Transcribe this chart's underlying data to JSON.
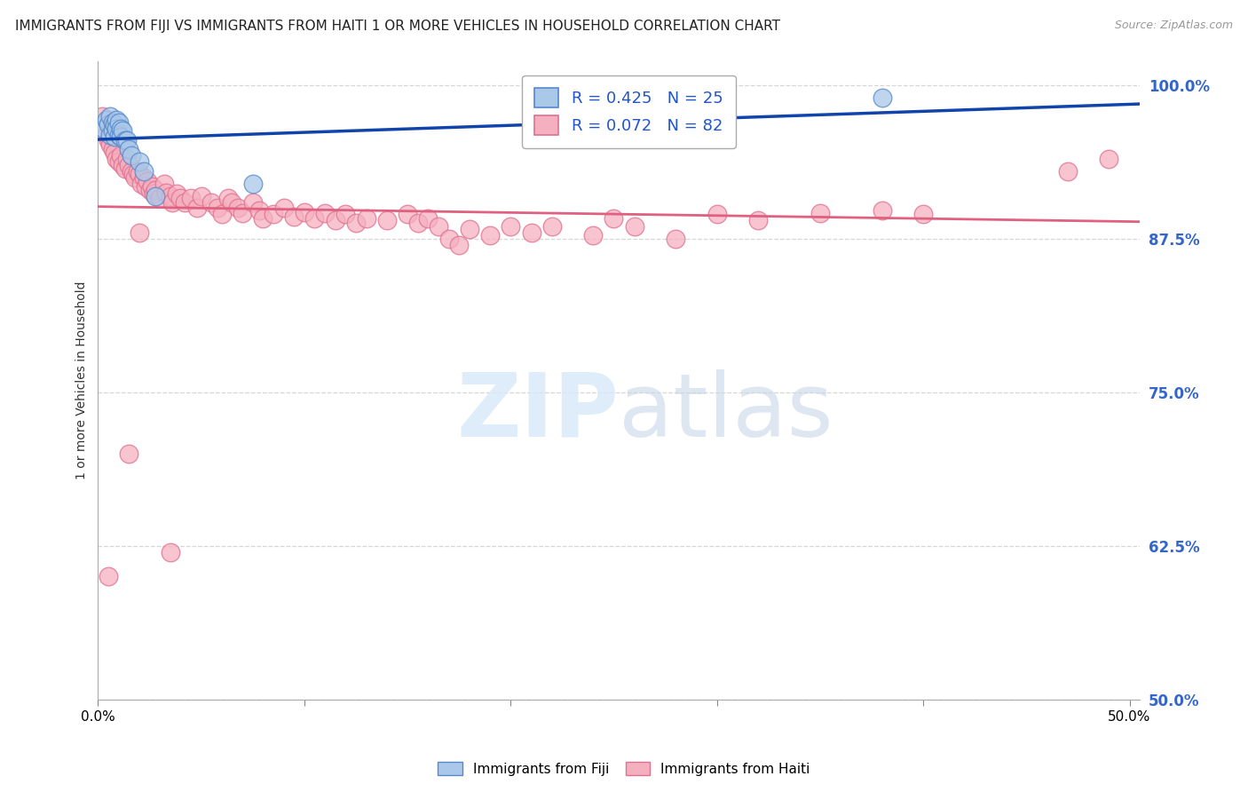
{
  "title": "IMMIGRANTS FROM FIJI VS IMMIGRANTS FROM HAITI 1 OR MORE VEHICLES IN HOUSEHOLD CORRELATION CHART",
  "source": "Source: ZipAtlas.com",
  "ylabel": "1 or more Vehicles in Household",
  "ylim": [
    0.5,
    1.02
  ],
  "xlim": [
    0.0,
    0.505
  ],
  "yticks": [
    0.5,
    0.625,
    0.75,
    0.875,
    1.0
  ],
  "ytick_labels": [
    "50.0%",
    "62.5%",
    "75.0%",
    "87.5%",
    "100.0%"
  ],
  "xticks": [
    0.0,
    0.1,
    0.2,
    0.3,
    0.4,
    0.5
  ],
  "xtick_labels": [
    "0.0%",
    "",
    "",
    "",
    "",
    "50.0%"
  ],
  "fiji_R": 0.425,
  "fiji_N": 25,
  "haiti_R": 0.072,
  "haiti_N": 82,
  "fiji_color": "#aac8e8",
  "haiti_color": "#f5b0c0",
  "fiji_edge": "#5588cc",
  "haiti_edge": "#e07090",
  "trendline_fiji_color": "#1144aa",
  "trendline_haiti_color": "#e06080",
  "fiji_points": [
    [
      0.003,
      0.965
    ],
    [
      0.004,
      0.972
    ],
    [
      0.005,
      0.968
    ],
    [
      0.006,
      0.975
    ],
    [
      0.006,
      0.96
    ],
    [
      0.007,
      0.97
    ],
    [
      0.007,
      0.963
    ],
    [
      0.008,
      0.968
    ],
    [
      0.008,
      0.958
    ],
    [
      0.009,
      0.972
    ],
    [
      0.009,
      0.965
    ],
    [
      0.01,
      0.97
    ],
    [
      0.01,
      0.96
    ],
    [
      0.011,
      0.965
    ],
    [
      0.011,
      0.958
    ],
    [
      0.012,
      0.963
    ],
    [
      0.013,
      0.955
    ],
    [
      0.014,
      0.955
    ],
    [
      0.015,
      0.948
    ],
    [
      0.016,
      0.943
    ],
    [
      0.02,
      0.938
    ],
    [
      0.022,
      0.93
    ],
    [
      0.028,
      0.91
    ],
    [
      0.075,
      0.92
    ],
    [
      0.38,
      0.99
    ]
  ],
  "haiti_points": [
    [
      0.002,
      0.975
    ],
    [
      0.004,
      0.96
    ],
    [
      0.005,
      0.955
    ],
    [
      0.006,
      0.952
    ],
    [
      0.007,
      0.948
    ],
    [
      0.008,
      0.945
    ],
    [
      0.009,
      0.94
    ],
    [
      0.01,
      0.938
    ],
    [
      0.011,
      0.943
    ],
    [
      0.012,
      0.935
    ],
    [
      0.013,
      0.932
    ],
    [
      0.014,
      0.94
    ],
    [
      0.015,
      0.935
    ],
    [
      0.016,
      0.93
    ],
    [
      0.017,
      0.928
    ],
    [
      0.018,
      0.925
    ],
    [
      0.019,
      0.93
    ],
    [
      0.02,
      0.928
    ],
    [
      0.021,
      0.92
    ],
    [
      0.022,
      0.925
    ],
    [
      0.023,
      0.918
    ],
    [
      0.024,
      0.922
    ],
    [
      0.025,
      0.915
    ],
    [
      0.026,
      0.918
    ],
    [
      0.027,
      0.912
    ],
    [
      0.028,
      0.915
    ],
    [
      0.03,
      0.908
    ],
    [
      0.032,
      0.92
    ],
    [
      0.033,
      0.913
    ],
    [
      0.035,
      0.91
    ],
    [
      0.036,
      0.905
    ],
    [
      0.038,
      0.912
    ],
    [
      0.04,
      0.908
    ],
    [
      0.042,
      0.905
    ],
    [
      0.045,
      0.908
    ],
    [
      0.048,
      0.9
    ],
    [
      0.05,
      0.91
    ],
    [
      0.055,
      0.905
    ],
    [
      0.058,
      0.9
    ],
    [
      0.06,
      0.895
    ],
    [
      0.063,
      0.908
    ],
    [
      0.065,
      0.905
    ],
    [
      0.068,
      0.9
    ],
    [
      0.07,
      0.896
    ],
    [
      0.075,
      0.905
    ],
    [
      0.078,
      0.898
    ],
    [
      0.08,
      0.892
    ],
    [
      0.085,
      0.895
    ],
    [
      0.09,
      0.9
    ],
    [
      0.095,
      0.893
    ],
    [
      0.1,
      0.897
    ],
    [
      0.105,
      0.892
    ],
    [
      0.11,
      0.896
    ],
    [
      0.115,
      0.89
    ],
    [
      0.12,
      0.895
    ],
    [
      0.125,
      0.888
    ],
    [
      0.13,
      0.892
    ],
    [
      0.14,
      0.89
    ],
    [
      0.15,
      0.895
    ],
    [
      0.155,
      0.888
    ],
    [
      0.16,
      0.892
    ],
    [
      0.165,
      0.885
    ],
    [
      0.17,
      0.875
    ],
    [
      0.175,
      0.87
    ],
    [
      0.18,
      0.883
    ],
    [
      0.19,
      0.878
    ],
    [
      0.2,
      0.885
    ],
    [
      0.21,
      0.88
    ],
    [
      0.22,
      0.885
    ],
    [
      0.24,
      0.878
    ],
    [
      0.25,
      0.892
    ],
    [
      0.26,
      0.885
    ],
    [
      0.28,
      0.875
    ],
    [
      0.3,
      0.895
    ],
    [
      0.32,
      0.89
    ],
    [
      0.35,
      0.896
    ],
    [
      0.38,
      0.898
    ],
    [
      0.4,
      0.895
    ],
    [
      0.02,
      0.88
    ],
    [
      0.015,
      0.7
    ],
    [
      0.005,
      0.6
    ],
    [
      0.035,
      0.62
    ],
    [
      0.49,
      0.94
    ],
    [
      0.47,
      0.93
    ]
  ],
  "background_color": "#ffffff",
  "grid_color": "#cccccc",
  "title_fontsize": 11,
  "axis_label_fontsize": 10,
  "legend_fontsize": 13
}
